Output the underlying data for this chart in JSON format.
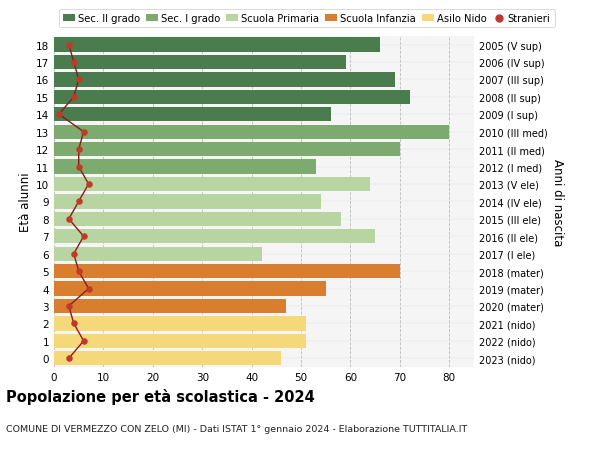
{
  "ages": [
    18,
    17,
    16,
    15,
    14,
    13,
    12,
    11,
    10,
    9,
    8,
    7,
    6,
    5,
    4,
    3,
    2,
    1,
    0
  ],
  "right_labels": [
    "2005 (V sup)",
    "2006 (IV sup)",
    "2007 (III sup)",
    "2008 (II sup)",
    "2009 (I sup)",
    "2010 (III med)",
    "2011 (II med)",
    "2012 (I med)",
    "2013 (V ele)",
    "2014 (IV ele)",
    "2015 (III ele)",
    "2016 (II ele)",
    "2017 (I ele)",
    "2018 (mater)",
    "2019 (mater)",
    "2020 (mater)",
    "2021 (nido)",
    "2022 (nido)",
    "2023 (nido)"
  ],
  "bar_values": [
    66,
    59,
    69,
    72,
    56,
    80,
    70,
    53,
    64,
    54,
    58,
    65,
    42,
    70,
    55,
    47,
    51,
    51,
    46
  ],
  "bar_colors": [
    "#4a7c4e",
    "#4a7c4e",
    "#4a7c4e",
    "#4a7c4e",
    "#4a7c4e",
    "#7daa6e",
    "#7daa6e",
    "#7daa6e",
    "#b8d4a0",
    "#b8d4a0",
    "#b8d4a0",
    "#b8d4a0",
    "#b8d4a0",
    "#d97d2e",
    "#d97d2e",
    "#d97d2e",
    "#f5d87a",
    "#f5d87a",
    "#f5d87a"
  ],
  "stranieri_values": [
    3,
    4,
    5,
    4,
    1,
    6,
    5,
    5,
    7,
    5,
    3,
    6,
    4,
    5,
    7,
    3,
    4,
    6,
    3
  ],
  "legend_labels": [
    "Sec. II grado",
    "Sec. I grado",
    "Scuola Primaria",
    "Scuola Infanzia",
    "Asilo Nido",
    "Stranieri"
  ],
  "legend_colors": [
    "#4a7c4e",
    "#7daa6e",
    "#b8d4a0",
    "#d97d2e",
    "#f5d87a",
    "#c0392b"
  ],
  "title": "Popolazione per età scolastica - 2024",
  "subtitle": "COMUNE DI VERMEZZO CON ZELO (MI) - Dati ISTAT 1° gennaio 2024 - Elaborazione TUTTITALIA.IT",
  "ylabel": "Età alunni",
  "right_ylabel": "Anni di nascita",
  "xlabel_values": [
    0,
    10,
    20,
    30,
    40,
    50,
    60,
    70,
    80
  ],
  "xlim": [
    0,
    85
  ],
  "background_color": "#ffffff",
  "plot_bg_color": "#f5f5f5"
}
